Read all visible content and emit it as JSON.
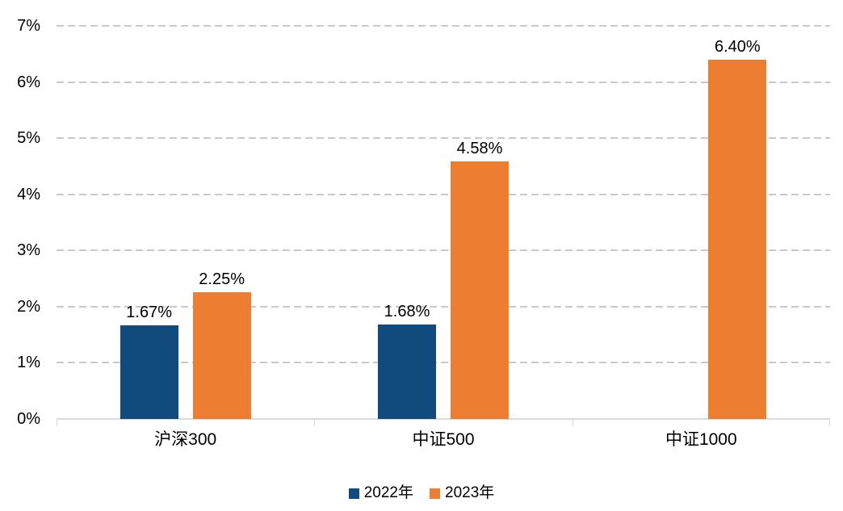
{
  "chart_data": {
    "type": "bar",
    "categories": [
      "沪深300",
      "中证500",
      "中证1000"
    ],
    "series": [
      {
        "name": "2022年",
        "color": "#114a7c",
        "values": [
          1.67,
          1.68,
          null
        ],
        "labels": [
          "1.67%",
          "1.68%",
          null
        ]
      },
      {
        "name": "2023年",
        "color": "#ed7d31",
        "values": [
          2.25,
          4.58,
          6.4
        ],
        "labels": [
          "2.25%",
          "4.58%",
          "6.40%"
        ]
      }
    ],
    "ylim": [
      0,
      7
    ],
    "ytick_labels": [
      "0%",
      "1%",
      "2%",
      "3%",
      "4%",
      "5%",
      "6%",
      "7%"
    ],
    "grid": {
      "horizontal": true,
      "style": "dashed",
      "color": "#c9c9c9"
    },
    "axis_color": "#d9d9d9",
    "text_color": "#000000",
    "legend": {
      "position": "bottom-center",
      "entries": [
        "2022年",
        "2023年"
      ]
    }
  }
}
